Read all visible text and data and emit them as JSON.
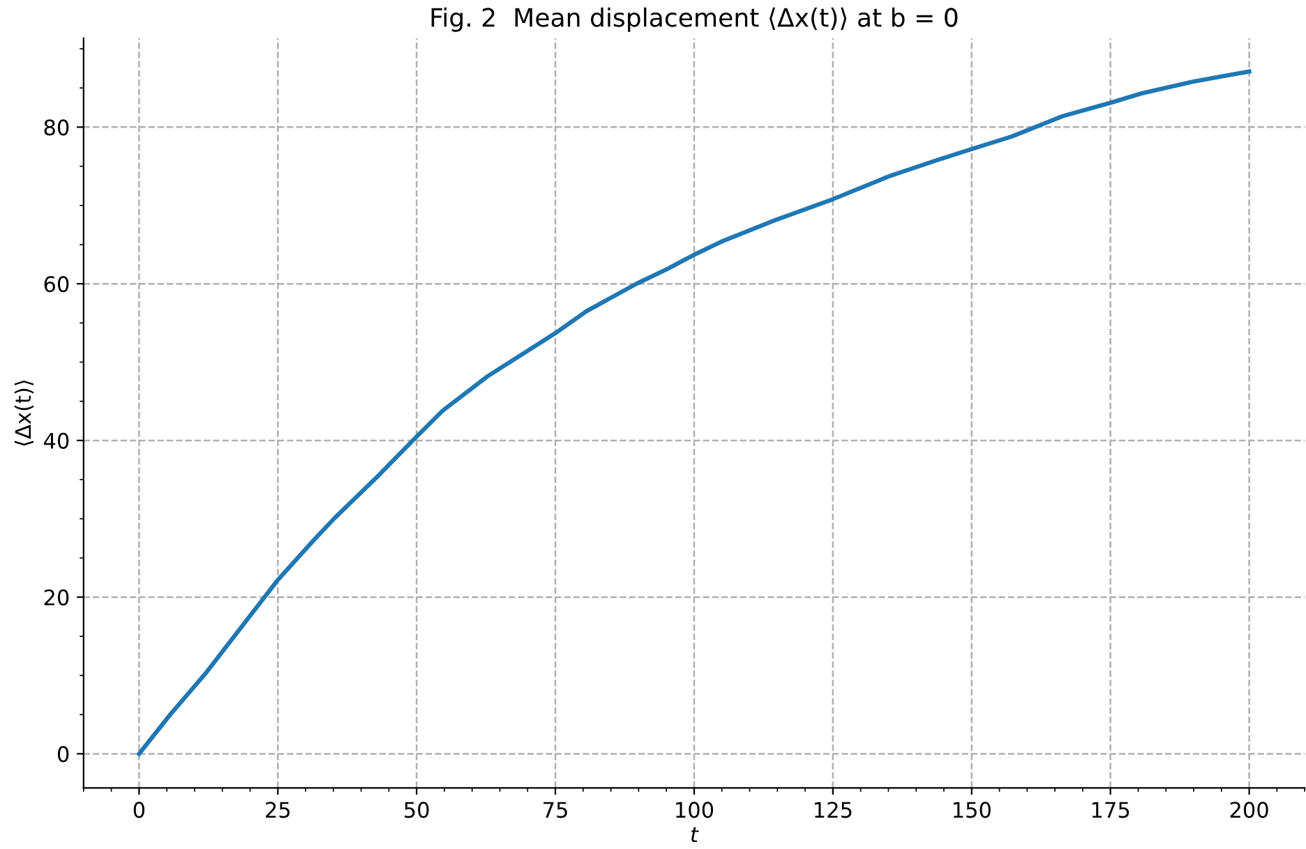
{
  "chart_data": {
    "type": "line",
    "title": "Fig. 2  Mean displacement ⟨Δx(t)⟩ at b = 0",
    "xlabel": "t",
    "ylabel": "⟨Δx(t)⟩",
    "x": [
      0,
      5.6,
      11.9,
      22.6,
      25,
      31.5,
      35.1,
      43.1,
      50,
      54.7,
      62.8,
      75,
      80.6,
      89.6,
      95.2,
      100,
      105.3,
      114.5,
      125,
      135.4,
      143.8,
      150,
      157.2,
      166.4,
      175,
      180.6,
      189.8,
      200
    ],
    "series": [
      {
        "color": "#1f77b4",
        "values": [
          0,
          5.0,
          10.2,
          20.0,
          22.2,
          27.3,
          30.0,
          35.5,
          40.5,
          43.8,
          48.2,
          53.7,
          56.5,
          60.0,
          61.9,
          63.7,
          65.5,
          68.1,
          70.8,
          73.8,
          75.8,
          77.2,
          78.8,
          81.4,
          83.1,
          84.3,
          85.8,
          87.1
        ]
      }
    ],
    "xlim": [
      -10,
      210
    ],
    "ylim": [
      -4.35,
      91.35
    ],
    "xticks": [
      0,
      25,
      50,
      75,
      100,
      125,
      150,
      175,
      200
    ],
    "yticks": [
      0,
      20,
      40,
      60,
      80
    ],
    "grid": true,
    "line_style": "solid",
    "marker": "none"
  }
}
